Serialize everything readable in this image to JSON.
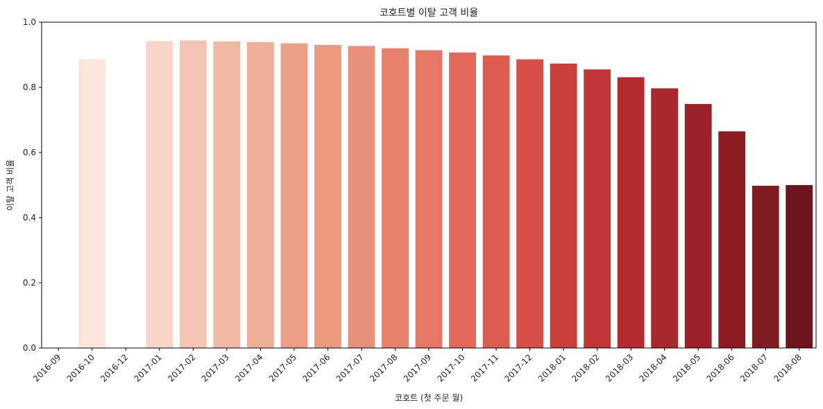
{
  "chart_data": {
    "type": "bar",
    "title": "코호트별 이탈 고객 비율",
    "xlabel": "코호트 (첫 주문 월)",
    "ylabel": "이탈 고객 비율",
    "ylim": [
      0,
      1.0
    ],
    "yticks": [
      "0.0",
      "0.2",
      "0.4",
      "0.6",
      "0.8",
      "1.0"
    ],
    "grid": false,
    "categories": [
      "2016-09",
      "2016-10",
      "2016-12",
      "2017-01",
      "2017-02",
      "2017-03",
      "2017-04",
      "2017-05",
      "2017-06",
      "2017-07",
      "2017-08",
      "2017-09",
      "2017-10",
      "2017-11",
      "2017-12",
      "2018-01",
      "2018-02",
      "2018-03",
      "2018-04",
      "2018-05",
      "2018-06",
      "2018-07",
      "2018-08"
    ],
    "values": [
      0.0,
      0.886,
      0.0,
      0.942,
      0.944,
      0.941,
      0.939,
      0.935,
      0.93,
      0.927,
      0.92,
      0.914,
      0.907,
      0.898,
      0.886,
      0.873,
      0.855,
      0.831,
      0.797,
      0.749,
      0.665,
      0.498,
      0.5
    ],
    "colors": [
      "#fff5f0",
      "#fbe5dd",
      "#fbdad0",
      "#f7d5c7",
      "#f4c5b3",
      "#f0b9a3",
      "#eeb09a",
      "#ec9e87",
      "#eb997f",
      "#e8907a",
      "#e6826b",
      "#e47865",
      "#e2685c",
      "#dc5c4f",
      "#d84f45",
      "#c93f3a",
      "#c13535",
      "#b52a2f",
      "#a7292d",
      "#9b2228",
      "#8e1c23",
      "#811b22",
      "#6e141c"
    ]
  }
}
